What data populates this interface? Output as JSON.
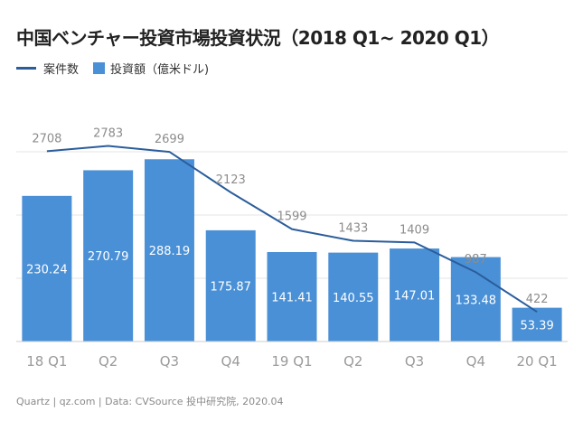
{
  "title": "中国ベンチャー投資市場投資状況（2018 Q1~ 2020 Q1）",
  "footer": "Quartz | qz.com | Data: CVSource 投中研究院, 2020.04",
  "colors": {
    "bar": "#4a90d6",
    "line": "#2b5d9c",
    "grid": "#e4e4e4",
    "axis_text": "#9a9a9a",
    "bar_label": "#ffffff",
    "line_label": "#8c8c8c"
  },
  "chart_data": {
    "type": "bar",
    "categories": [
      "18 Q1",
      "Q2",
      "Q3",
      "Q4",
      "19 Q1",
      "Q2",
      "Q3",
      "Q4",
      "20 Q1"
    ],
    "series": [
      {
        "name": "投資額（億米ドル)",
        "type": "bar",
        "values": [
          230.24,
          270.79,
          288.19,
          175.87,
          141.41,
          140.55,
          147.01,
          133.48,
          53.39
        ],
        "labels": [
          "230.24",
          "270.79",
          "288.19",
          "175.87",
          "141.41",
          "140.55",
          "147.01",
          "133.48",
          "53.39"
        ]
      },
      {
        "name": "案件数",
        "type": "line",
        "values": [
          2708,
          2783,
          2699,
          2123,
          1599,
          1433,
          1409,
          987,
          422
        ],
        "labels": [
          "2708",
          "2783",
          "2699",
          "2123",
          "1599",
          "1433",
          "1409",
          "987",
          "422"
        ]
      }
    ],
    "bar_axis_range": [
      0,
      400
    ],
    "line_axis_range": [
      0,
      3600
    ],
    "grid": true,
    "legend_position": "top-left"
  }
}
